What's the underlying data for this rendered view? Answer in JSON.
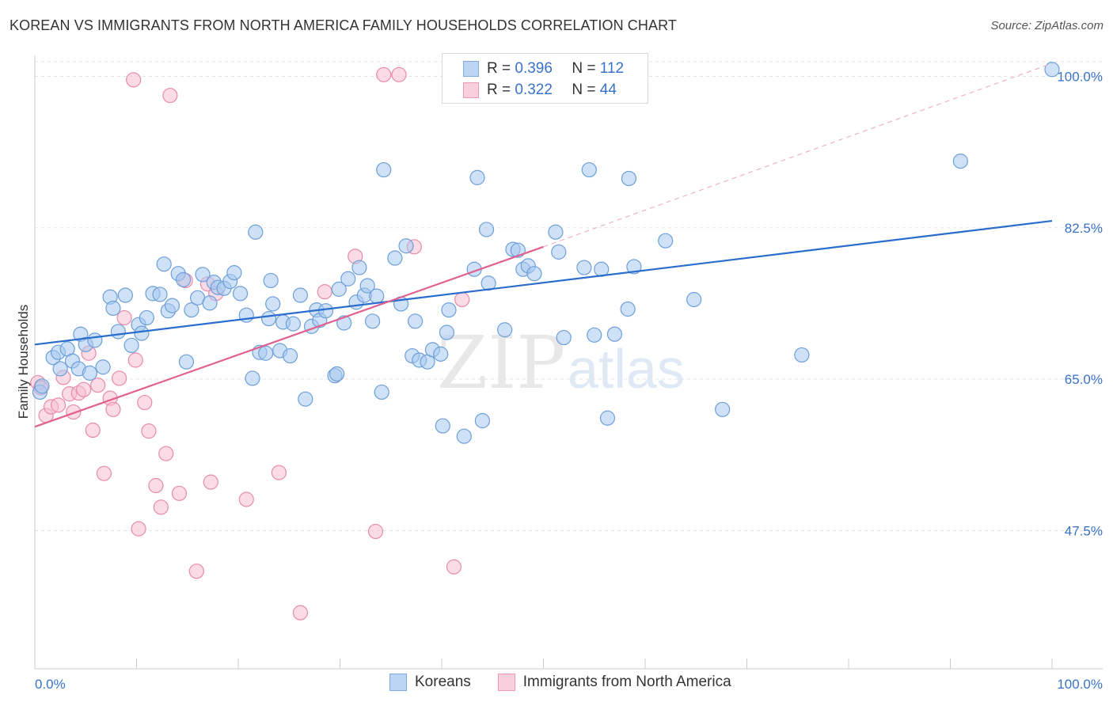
{
  "header": {
    "title": "KOREAN VS IMMIGRANTS FROM NORTH AMERICA FAMILY HOUSEHOLDS CORRELATION CHART",
    "source": "Source: ZipAtlas.com"
  },
  "legend": {
    "r_label": "R =",
    "n_label": "N =",
    "series": [
      {
        "name": "Koreans",
        "r": "0.396",
        "n": "112"
      },
      {
        "name": "Immigrants from North America",
        "r": "0.322",
        "n": "44"
      }
    ]
  },
  "watermark": {
    "zip": "ZIP",
    "atlas": "atlas"
  },
  "colors": {
    "koreans_fill": "#a8c8f0",
    "koreans_stroke": "#6d9fd8",
    "koreans_line": "#2a6dcc",
    "immigrants_fill": "#f7bfd2",
    "immigrants_stroke": "#e88aab",
    "immigrants_line": "#e0608f",
    "tick_text": "#3a72c8"
  },
  "chart_data": {
    "type": "scatter",
    "title": "KOREAN VS IMMIGRANTS FROM NORTH AMERICA FAMILY HOUSEHOLDS CORRELATION CHART",
    "xlabel": "",
    "ylabel": "Family Households",
    "xlim": [
      0,
      100
    ],
    "ylim": [
      31.5,
      103.5
    ],
    "x_tick_labels": [
      "0.0%",
      "100.0%"
    ],
    "y_ticks": [
      {
        "value": 47.5,
        "label": "47.5%"
      },
      {
        "value": 65.0,
        "label": "65.0%"
      },
      {
        "value": 82.5,
        "label": "82.5%"
      },
      {
        "value": 100.0,
        "label": "100.0%"
      }
    ],
    "grid": true,
    "series": [
      {
        "name": "Koreans",
        "r": 0.396,
        "n": 112,
        "trend": {
          "x0": 0,
          "y0": 69.0,
          "x1": 100,
          "y1": 83.3
        },
        "points": [
          [
            0.5,
            63.5
          ],
          [
            0.7,
            64.2
          ],
          [
            1.8,
            67.5
          ],
          [
            2.3,
            68.1
          ],
          [
            2.5,
            66.2
          ],
          [
            3.2,
            68.5
          ],
          [
            3.7,
            67.1
          ],
          [
            4.3,
            66.2
          ],
          [
            4.5,
            70.2
          ],
          [
            5.0,
            69.0
          ],
          [
            5.4,
            65.7
          ],
          [
            5.9,
            69.5
          ],
          [
            6.7,
            66.4
          ],
          [
            7.4,
            74.5
          ],
          [
            7.7,
            73.2
          ],
          [
            8.2,
            70.5
          ],
          [
            8.9,
            74.7
          ],
          [
            9.5,
            68.9
          ],
          [
            10.2,
            71.3
          ],
          [
            10.5,
            70.3
          ],
          [
            11.0,
            72.1
          ],
          [
            11.6,
            74.9
          ],
          [
            12.3,
            74.8
          ],
          [
            12.7,
            78.3
          ],
          [
            13.1,
            72.9
          ],
          [
            13.5,
            73.5
          ],
          [
            14.1,
            77.2
          ],
          [
            14.6,
            76.5
          ],
          [
            14.9,
            67.0
          ],
          [
            15.4,
            73.0
          ],
          [
            16.0,
            74.4
          ],
          [
            16.5,
            77.1
          ],
          [
            17.2,
            73.8
          ],
          [
            17.6,
            76.2
          ],
          [
            18.0,
            75.6
          ],
          [
            18.6,
            75.5
          ],
          [
            19.2,
            76.3
          ],
          [
            19.6,
            77.3
          ],
          [
            20.2,
            74.9
          ],
          [
            20.8,
            72.4
          ],
          [
            21.4,
            65.1
          ],
          [
            21.7,
            82.0
          ],
          [
            22.1,
            68.1
          ],
          [
            22.7,
            68.0
          ],
          [
            23.2,
            76.4
          ],
          [
            23.4,
            73.7
          ],
          [
            24.1,
            68.3
          ],
          [
            24.4,
            71.6
          ],
          [
            25.1,
            67.7
          ],
          [
            25.4,
            71.4
          ],
          [
            26.1,
            74.7
          ],
          [
            26.6,
            62.7
          ],
          [
            27.2,
            71.1
          ],
          [
            27.7,
            73.0
          ],
          [
            28.0,
            71.8
          ],
          [
            28.6,
            72.9
          ],
          [
            29.5,
            65.4
          ],
          [
            29.9,
            75.4
          ],
          [
            30.4,
            71.5
          ],
          [
            30.8,
            76.6
          ],
          [
            31.6,
            73.9
          ],
          [
            31.9,
            77.9
          ],
          [
            32.4,
            74.7
          ],
          [
            32.7,
            75.8
          ],
          [
            33.2,
            71.7
          ],
          [
            33.6,
            74.6
          ],
          [
            34.1,
            63.5
          ],
          [
            34.3,
            89.2
          ],
          [
            35.4,
            79.0
          ],
          [
            36.0,
            73.7
          ],
          [
            36.5,
            80.4
          ],
          [
            37.1,
            67.7
          ],
          [
            37.4,
            71.7
          ],
          [
            37.8,
            67.2
          ],
          [
            38.6,
            67.0
          ],
          [
            39.1,
            68.4
          ],
          [
            39.9,
            67.9
          ],
          [
            40.5,
            70.4
          ],
          [
            40.7,
            73.0
          ],
          [
            40.1,
            59.6
          ],
          [
            42.2,
            58.4
          ],
          [
            43.2,
            77.7
          ],
          [
            43.5,
            88.3
          ],
          [
            44.0,
            60.2
          ],
          [
            44.4,
            82.3
          ],
          [
            44.6,
            76.1
          ],
          [
            46.2,
            70.7
          ],
          [
            47.0,
            80.0
          ],
          [
            47.5,
            79.9
          ],
          [
            48.0,
            77.7
          ],
          [
            48.5,
            78.1
          ],
          [
            49.1,
            77.2
          ],
          [
            51.2,
            82.0
          ],
          [
            51.5,
            79.7
          ],
          [
            52.0,
            69.8
          ],
          [
            54.0,
            77.9
          ],
          [
            54.5,
            89.2
          ],
          [
            55.0,
            70.1
          ],
          [
            55.7,
            77.7
          ],
          [
            56.3,
            60.5
          ],
          [
            57.0,
            70.2
          ],
          [
            58.3,
            73.1
          ],
          [
            58.4,
            88.2
          ],
          [
            58.9,
            78.0
          ],
          [
            62.0,
            81.0
          ],
          [
            64.8,
            74.2
          ],
          [
            67.6,
            61.5
          ],
          [
            75.4,
            67.8
          ],
          [
            91.0,
            90.2
          ],
          [
            100.0,
            100.8
          ],
          [
            29.7,
            65.6
          ],
          [
            23.0,
            72.0
          ]
        ]
      },
      {
        "name": "Immigrants from North America",
        "r": 0.322,
        "n": 44,
        "trend": {
          "x0": 0,
          "y0": 59.5,
          "x1": 50.0,
          "y1": 80.3
        },
        "extension": {
          "x0": 50.0,
          "y0": 80.3,
          "x1": 100,
          "y1": 101.5
        },
        "points": [
          [
            0.3,
            64.6
          ],
          [
            0.6,
            64.0
          ],
          [
            1.1,
            60.8
          ],
          [
            1.6,
            61.8
          ],
          [
            2.3,
            62.0
          ],
          [
            2.8,
            65.2
          ],
          [
            3.4,
            63.3
          ],
          [
            3.8,
            61.2
          ],
          [
            4.3,
            63.4
          ],
          [
            4.8,
            63.8
          ],
          [
            5.3,
            68.0
          ],
          [
            5.7,
            59.1
          ],
          [
            6.2,
            64.3
          ],
          [
            6.8,
            54.1
          ],
          [
            7.4,
            62.8
          ],
          [
            7.7,
            61.5
          ],
          [
            8.3,
            65.1
          ],
          [
            8.8,
            72.1
          ],
          [
            9.7,
            99.6
          ],
          [
            9.9,
            67.2
          ],
          [
            10.2,
            47.7
          ],
          [
            10.8,
            62.3
          ],
          [
            11.2,
            59.0
          ],
          [
            11.9,
            52.7
          ],
          [
            12.4,
            50.2
          ],
          [
            12.9,
            56.4
          ],
          [
            13.3,
            97.8
          ],
          [
            14.2,
            51.8
          ],
          [
            14.8,
            76.4
          ],
          [
            15.9,
            42.8
          ],
          [
            17.0,
            76.0
          ],
          [
            17.3,
            53.1
          ],
          [
            17.8,
            74.9
          ],
          [
            20.8,
            51.1
          ],
          [
            24.0,
            54.2
          ],
          [
            26.1,
            38.0
          ],
          [
            28.5,
            75.1
          ],
          [
            31.5,
            79.2
          ],
          [
            33.5,
            47.4
          ],
          [
            34.3,
            100.2
          ],
          [
            35.8,
            100.2
          ],
          [
            37.3,
            80.3
          ],
          [
            41.2,
            43.3
          ],
          [
            42.0,
            74.2
          ]
        ]
      }
    ]
  }
}
